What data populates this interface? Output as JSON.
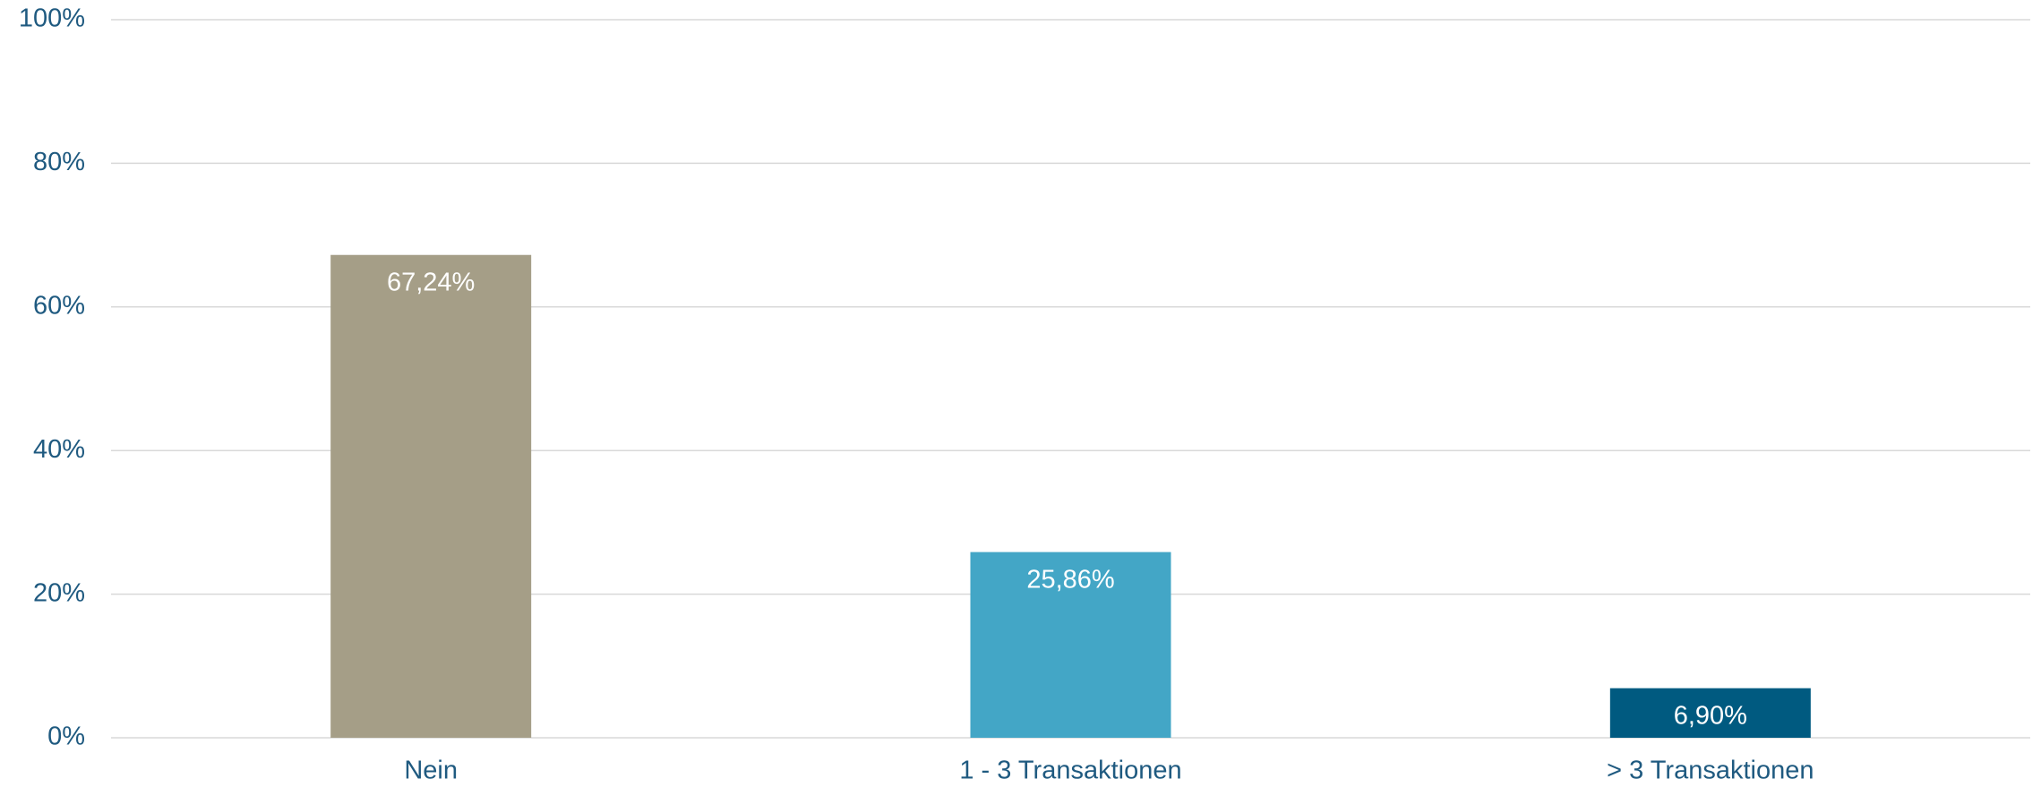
{
  "chart_data": {
    "type": "bar",
    "categories": [
      "Nein",
      "1 - 3 Transaktionen",
      "> 3 Transaktionen"
    ],
    "values": [
      67.24,
      25.86,
      6.9
    ],
    "value_labels": [
      "67,24%",
      "25,86%",
      "6,90%"
    ],
    "colors": [
      "#a59e87",
      "#43a6c6",
      "#005a80"
    ],
    "ylim": [
      0,
      100
    ],
    "yticks": [
      {
        "value": 0,
        "label": "0%"
      },
      {
        "value": 20,
        "label": "20%"
      },
      {
        "value": 40,
        "label": "40%"
      },
      {
        "value": 60,
        "label": "60%"
      },
      {
        "value": 80,
        "label": "80%"
      },
      {
        "value": 100,
        "label": "100%"
      }
    ],
    "grid": true
  }
}
